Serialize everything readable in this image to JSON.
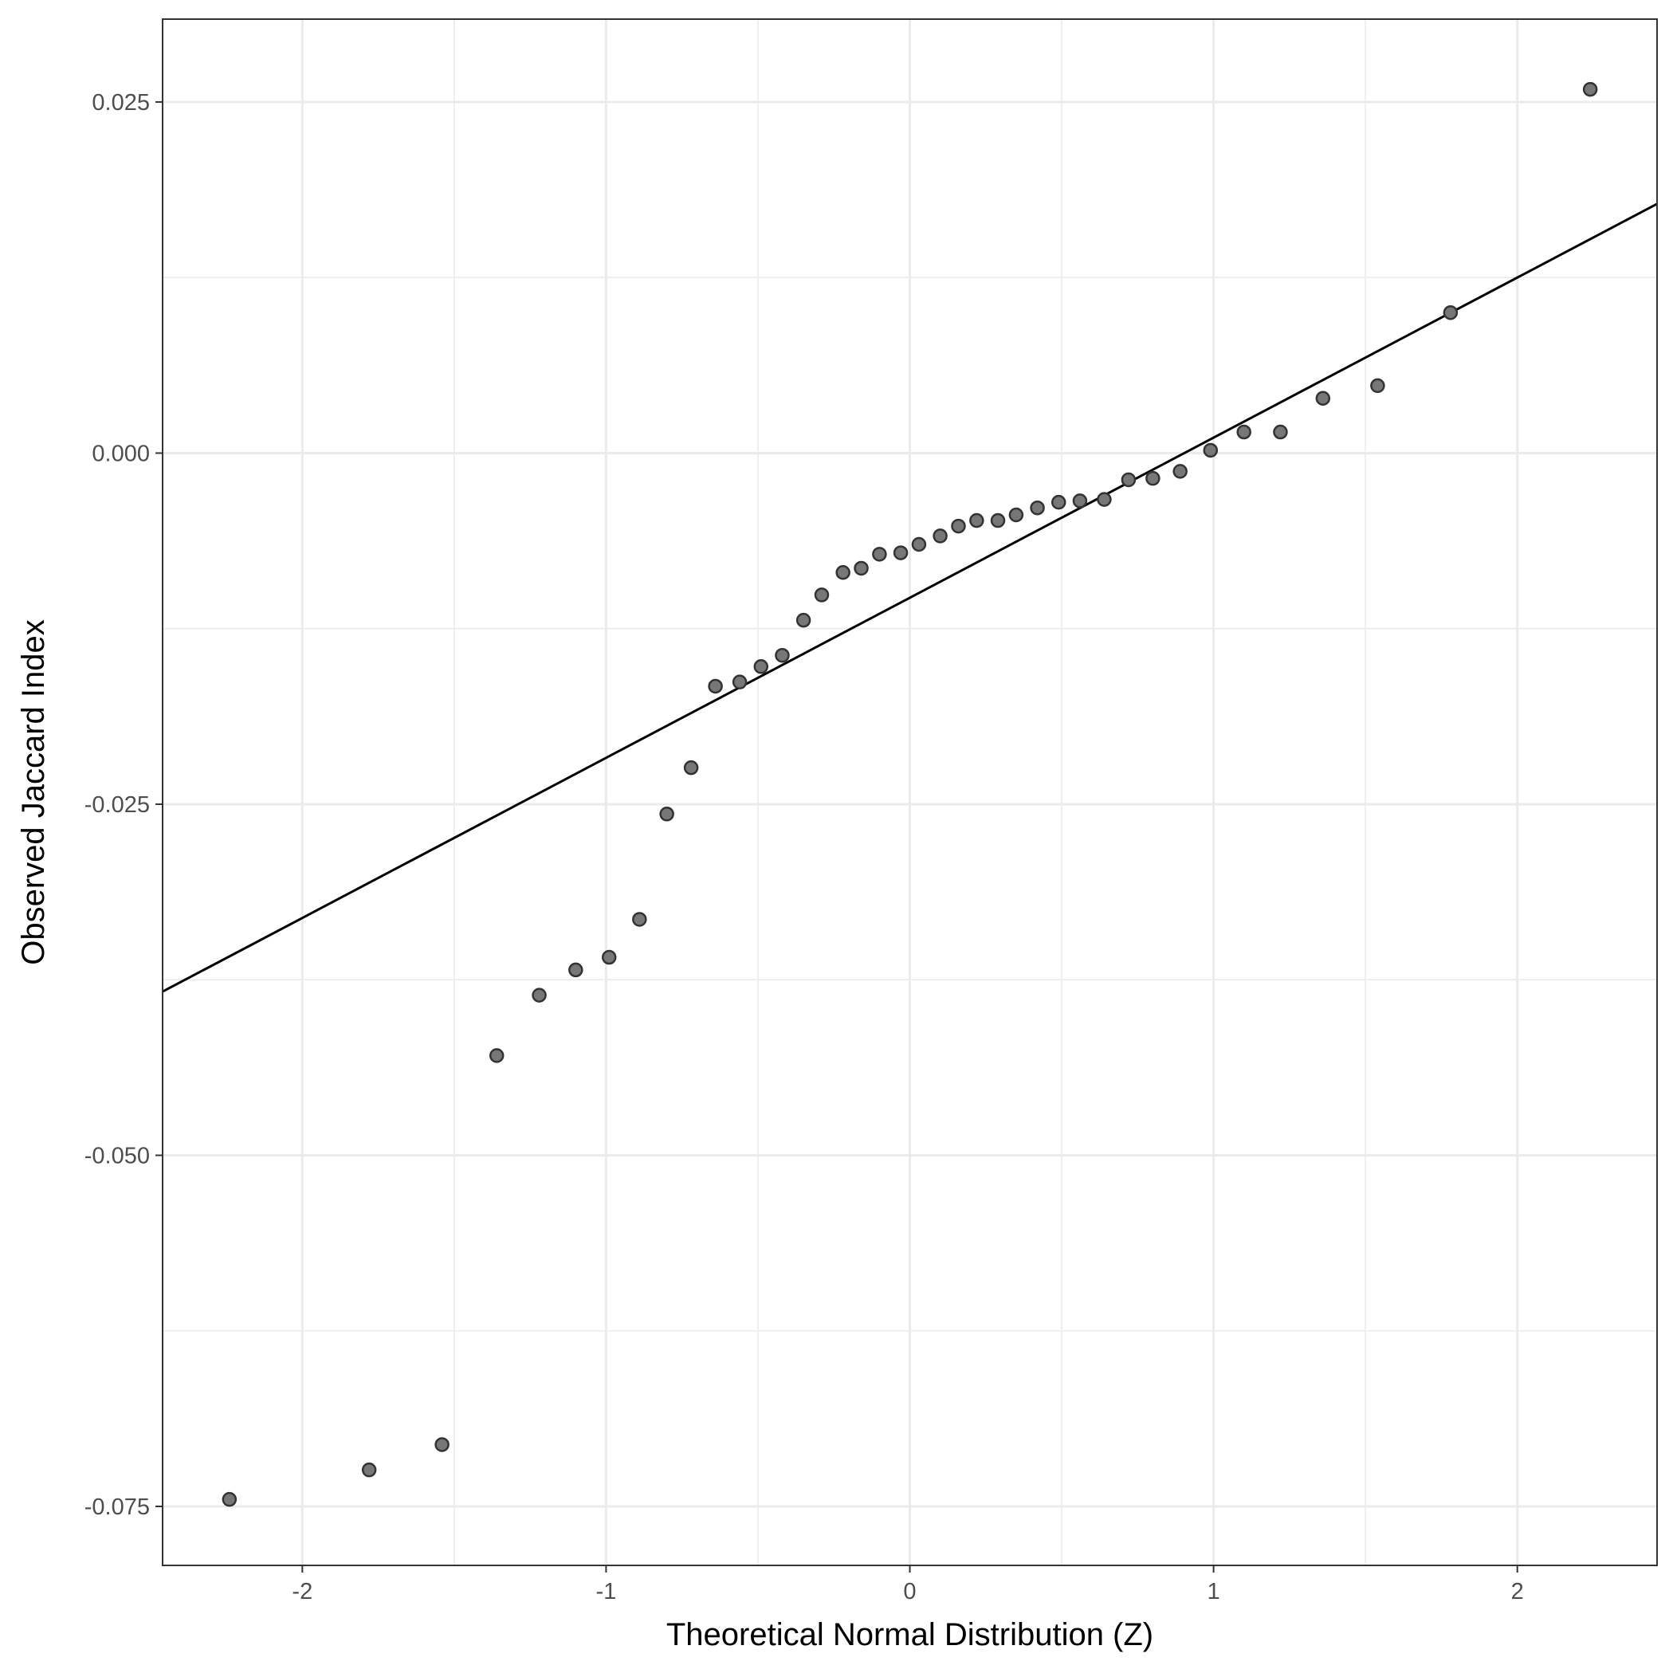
{
  "chart_data": {
    "type": "scatter",
    "title": "",
    "xlabel": "Theoretical Normal Distribution (Z)",
    "ylabel": "Observed Jaccard Index",
    "xlim": [
      -2.46,
      2.46
    ],
    "ylim": [
      -0.0792,
      0.0309
    ],
    "x_ticks": [
      -2,
      -1,
      0,
      1,
      2
    ],
    "x_tick_labels": [
      "-2",
      "-1",
      "0",
      "1",
      "2"
    ],
    "y_ticks": [
      -0.075,
      -0.05,
      -0.025,
      0.0,
      0.025
    ],
    "y_tick_labels": [
      "-0.075",
      "-0.050",
      "-0.025",
      "0.000",
      "0.025"
    ],
    "grid": true,
    "theme": "bw",
    "point_color": "#777777",
    "reference_line": {
      "intercept": -0.0103,
      "slope": 0.0114
    },
    "series": [
      {
        "x": [
          -2.24,
          -1.78,
          -1.54,
          -1.36,
          -1.22,
          -1.1,
          -0.99,
          -0.89,
          -0.8,
          -0.72,
          -0.64,
          -0.56,
          -0.49,
          -0.42,
          -0.35,
          -0.29,
          -0.22,
          -0.16,
          -0.1,
          -0.03,
          0.03,
          0.1,
          0.16,
          0.22,
          0.29,
          0.35,
          0.42,
          0.49,
          0.56,
          0.64,
          0.72,
          0.8,
          0.89,
          0.99,
          1.1,
          1.22,
          1.36,
          1.54,
          1.78,
          2.24
        ],
        "y": [
          -0.0745,
          -0.0724,
          -0.0706,
          -0.0429,
          -0.0386,
          -0.0368,
          -0.0359,
          -0.0332,
          -0.0257,
          -0.0224,
          -0.0166,
          -0.0163,
          -0.0152,
          -0.0144,
          -0.0119,
          -0.0101,
          -0.0085,
          -0.0082,
          -0.0072,
          -0.0071,
          -0.0065,
          -0.0059,
          -0.0052,
          -0.0048,
          -0.0048,
          -0.0044,
          -0.0039,
          -0.0035,
          -0.0034,
          -0.0033,
          -0.0019,
          -0.0018,
          -0.0013,
          0.0002,
          0.0015,
          0.0015,
          0.0039,
          0.0048,
          0.01,
          0.0259
        ]
      }
    ]
  }
}
